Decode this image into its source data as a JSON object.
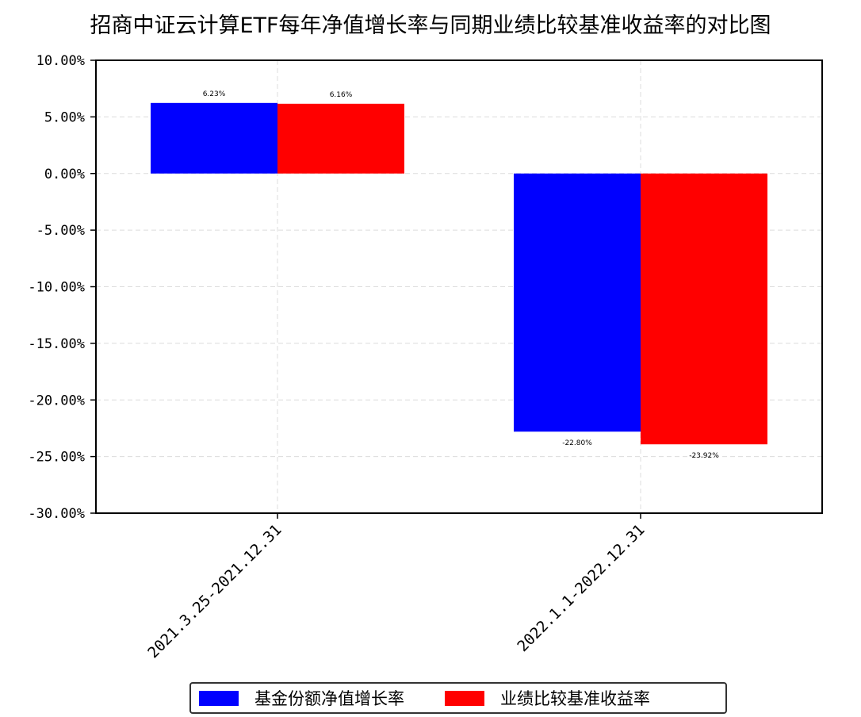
{
  "chart_data": {
    "type": "bar",
    "title": "招商中证云计算ETF每年净值增长率与同期业绩比较基准收益率的对比图",
    "categories": [
      "2021.3.25-2021.12.31",
      "2022.1.1-2022.12.31"
    ],
    "series": [
      {
        "name": "基金份额净值增长率",
        "values": [
          6.23,
          -22.8
        ],
        "labels": [
          "6.23%",
          "-22.80%"
        ],
        "color": "#0000ff"
      },
      {
        "name": "业绩比较基准收益率",
        "values": [
          6.16,
          -23.92
        ],
        "labels": [
          "6.16%",
          "-23.92%"
        ],
        "color": "#ff0000"
      }
    ],
    "ylim": [
      -30,
      10
    ],
    "yticks": [
      10,
      5,
      0,
      -5,
      -10,
      -15,
      -20,
      -25,
      -30
    ],
    "ytick_labels": [
      "10.00%",
      "5.00%",
      "0.00%",
      "-5.00%",
      "-10.00%",
      "-15.00%",
      "-20.00%",
      "-25.00%",
      "-30.00%"
    ],
    "grid": true,
    "legend_position": "bottom-center"
  }
}
